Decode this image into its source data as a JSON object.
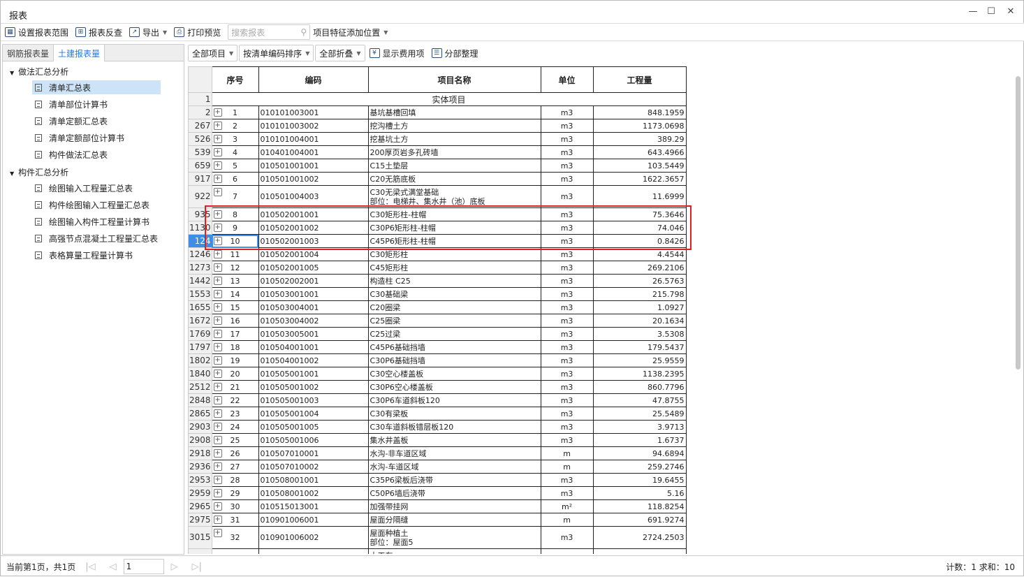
{
  "window": {
    "title": "报表"
  },
  "toolbar": {
    "set_range": "设置报表范围",
    "reverse_check": "报表反查",
    "export": "导出",
    "print_preview": "打印预览",
    "search_placeholder": "搜索报表",
    "feature_position": "项目特征添加位置"
  },
  "left": {
    "tabs": [
      "钢筋报表量",
      "土建报表量"
    ],
    "active_tab": 1,
    "groups": [
      {
        "label": "做法汇总分析",
        "items": [
          "清单汇总表",
          "清单部位计算书",
          "清单定额汇总表",
          "清单定额部位计算书",
          "构件做法汇总表"
        ]
      },
      {
        "label": "构件汇总分析",
        "items": [
          "绘图输入工程量汇总表",
          "构件绘图输入工程量汇总表",
          "绘图输入构件工程量计算书",
          "高强节点混凝土工程量汇总表",
          "表格算量工程量计算书"
        ]
      }
    ],
    "selected": "清单汇总表"
  },
  "right_toolbar": {
    "all_items": "全部项目",
    "sort": "按清单编码排序",
    "collapse": "全部折叠",
    "show_fee": "显示费用项",
    "reorganize": "分部整理"
  },
  "table": {
    "headers": [
      "序号",
      "编码",
      "项目名称",
      "单位",
      "工程量"
    ],
    "section": "实体项目",
    "section_row": "1",
    "current_row": "124",
    "rows": [
      [
        "2",
        "1",
        "010101003001",
        "基坑基槽回填",
        "m3",
        "848.1959"
      ],
      [
        "267",
        "2",
        "010101003002",
        "挖沟槽土方",
        "m3",
        "1173.0698"
      ],
      [
        "526",
        "3",
        "010101004001",
        "挖基坑土方",
        "m3",
        "389.29"
      ],
      [
        "539",
        "4",
        "010401004001",
        "200厚页岩多孔砖墙",
        "m3",
        "643.4966"
      ],
      [
        "659",
        "5",
        "010501001001",
        "C15土垫层",
        "m3",
        "103.5449"
      ],
      [
        "917",
        "6",
        "010501001002",
        "C20无筋底板",
        "m3",
        "1622.3657"
      ],
      [
        "922",
        "7",
        "010501004003",
        "C30无梁式满堂基础\n部位：电梯井、集水井（池）底板",
        "m3",
        "11.6999"
      ],
      [
        "935",
        "8",
        "010502001001",
        "C30矩形柱-柱帽",
        "m3",
        "75.3646"
      ],
      [
        "1130",
        "9",
        "010502001002",
        "C30P6矩形柱-柱帽",
        "m3",
        "74.046"
      ],
      [
        "124",
        "10",
        "010502001003",
        "C45P6矩形柱-柱帽",
        "m3",
        "0.8426"
      ],
      [
        "1246",
        "11",
        "010502001004",
        "C30矩形柱",
        "m3",
        "4.4544"
      ],
      [
        "1273",
        "12",
        "010502001005",
        "C45矩形柱",
        "m3",
        "269.2106"
      ],
      [
        "1442",
        "13",
        "010502002001",
        "构造柱 C25",
        "m3",
        "26.5763"
      ],
      [
        "1553",
        "14",
        "010503001001",
        "C30基础梁",
        "m3",
        "215.798"
      ],
      [
        "1655",
        "15",
        "010503004001",
        "C20圈梁",
        "m3",
        "1.0927"
      ],
      [
        "1672",
        "16",
        "010503004002",
        "C25圈梁",
        "m3",
        "20.1634"
      ],
      [
        "1769",
        "17",
        "010503005001",
        "C25过梁",
        "m3",
        "3.5308"
      ],
      [
        "1797",
        "18",
        "010504001001",
        "C45P6基础挡墙",
        "m3",
        "179.5437"
      ],
      [
        "1802",
        "19",
        "010504001002",
        "C30P6基础挡墙",
        "m3",
        "25.9559"
      ],
      [
        "1840",
        "20",
        "010505001001",
        "C30空心楼盖板",
        "m3",
        "1138.2395"
      ],
      [
        "2512",
        "21",
        "010505001002",
        "C30P6空心楼盖板",
        "m3",
        "860.7796"
      ],
      [
        "2848",
        "22",
        "010505001003",
        "C30P6车道斜板120",
        "m3",
        "47.8755"
      ],
      [
        "2865",
        "23",
        "010505001004",
        "C30有梁板",
        "m3",
        "25.5489"
      ],
      [
        "2903",
        "24",
        "010505001005",
        "C30车道斜板错层板120",
        "m3",
        "3.9713"
      ],
      [
        "2908",
        "25",
        "010505001006",
        "集水井盖板",
        "m3",
        "1.6737"
      ],
      [
        "2918",
        "26",
        "010507010001",
        "水沟-非车道区域",
        "m",
        "94.6894"
      ],
      [
        "2936",
        "27",
        "010507010002",
        "水沟-车道区域",
        "m",
        "259.2746"
      ],
      [
        "2953",
        "28",
        "010508001001",
        "C35P6梁板后浇带",
        "m3",
        "19.6455"
      ],
      [
        "2959",
        "29",
        "010508001002",
        "C50P6墙后浇带",
        "m3",
        "5.16"
      ],
      [
        "2965",
        "30",
        "010515013001",
        "加强带挂网",
        "m²",
        "118.8254"
      ],
      [
        "2975",
        "31",
        "010901006001",
        "屋面分隔缝",
        "m",
        "691.9274"
      ],
      [
        "3015",
        "32",
        "010901006002",
        "屋面种植土\n部位：屋面5",
        "m3",
        "2724.2503"
      ],
      [
        "",
        "",
        "",
        "土工布",
        "",
        ""
      ]
    ]
  },
  "status": {
    "page_info": "当前第1页，共1页",
    "page": "1",
    "right": "计数：1  求和：10"
  },
  "colors": {
    "accent": "#2a7ad8",
    "selection": "#cde3f7",
    "highlight_box": "#e02020"
  }
}
